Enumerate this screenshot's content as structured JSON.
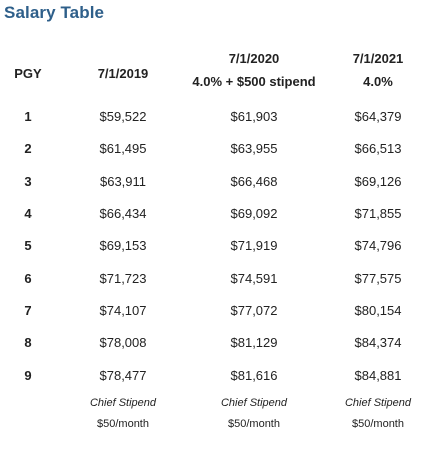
{
  "title": "Salary Table",
  "table": {
    "headers": {
      "pgy": "PGY",
      "col1": {
        "date": "7/1/2019",
        "note": ""
      },
      "col2": {
        "date": "7/1/2020",
        "note": "4.0% + $500 stipend"
      },
      "col3": {
        "date": "7/1/2021",
        "note": "4.0%"
      }
    },
    "rows": [
      {
        "pgy": "1",
        "v2019": "$59,522",
        "v2020": "$61,903",
        "v2021": "$64,379"
      },
      {
        "pgy": "2",
        "v2019": "$61,495",
        "v2020": "$63,955",
        "v2021": "$66,513"
      },
      {
        "pgy": "3",
        "v2019": "$63,911",
        "v2020": "$66,468",
        "v2021": "$69,126"
      },
      {
        "pgy": "4",
        "v2019": "$66,434",
        "v2020": "$69,092",
        "v2021": "$71,855"
      },
      {
        "pgy": "5",
        "v2019": "$69,153",
        "v2020": "$71,919",
        "v2021": "$74,796"
      },
      {
        "pgy": "6",
        "v2019": "$71,723",
        "v2020": "$74,591",
        "v2021": "$77,575"
      },
      {
        "pgy": "7",
        "v2019": "$74,107",
        "v2020": "$77,072",
        "v2021": "$80,154"
      },
      {
        "pgy": "8",
        "v2019": "$78,008",
        "v2020": "$81,129",
        "v2021": "$84,374"
      },
      {
        "pgy": "9",
        "v2019": "$78,477",
        "v2020": "$81,616",
        "v2021": "$84,881"
      }
    ],
    "stipend": {
      "label": "Chief Stipend",
      "amount": "$50/month"
    }
  },
  "colors": {
    "title": "#2e5f8a",
    "text": "#222222",
    "background": "#ffffff"
  }
}
